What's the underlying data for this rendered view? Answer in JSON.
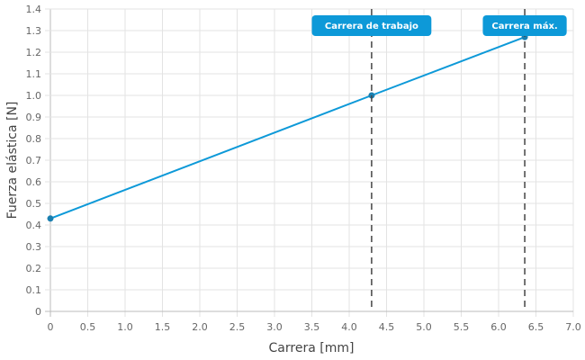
{
  "chart_data": {
    "type": "line",
    "xlabel": "Carrera [mm]",
    "ylabel": "Fuerza elástica [N]",
    "xlim": [
      0,
      7.0
    ],
    "ylim": [
      0,
      1.4
    ],
    "xticks": [
      "0",
      "0.5",
      "1.0",
      "1.5",
      "2.0",
      "2.5",
      "3.0",
      "3.5",
      "4.0",
      "4.5",
      "5.0",
      "5.5",
      "6.0",
      "6.5",
      "7.0"
    ],
    "yticks": [
      "0",
      "0.1",
      "0.2",
      "0.3",
      "0.4",
      "0.5",
      "0.6",
      "0.7",
      "0.8",
      "0.9",
      "1.0",
      "1.1",
      "1.2",
      "1.3",
      "1.4"
    ],
    "grid": true,
    "series": [
      {
        "x": [
          0,
          4.3,
          6.35
        ],
        "y": [
          0.43,
          1.0,
          1.27
        ],
        "color": "#0d99d8"
      }
    ],
    "annotations": [
      {
        "x": 4.3,
        "label": "Carrera de trabajo",
        "color": "#0d99d8"
      },
      {
        "x": 6.35,
        "label": "Carrera máx.",
        "color": "#0d99d8"
      }
    ]
  }
}
